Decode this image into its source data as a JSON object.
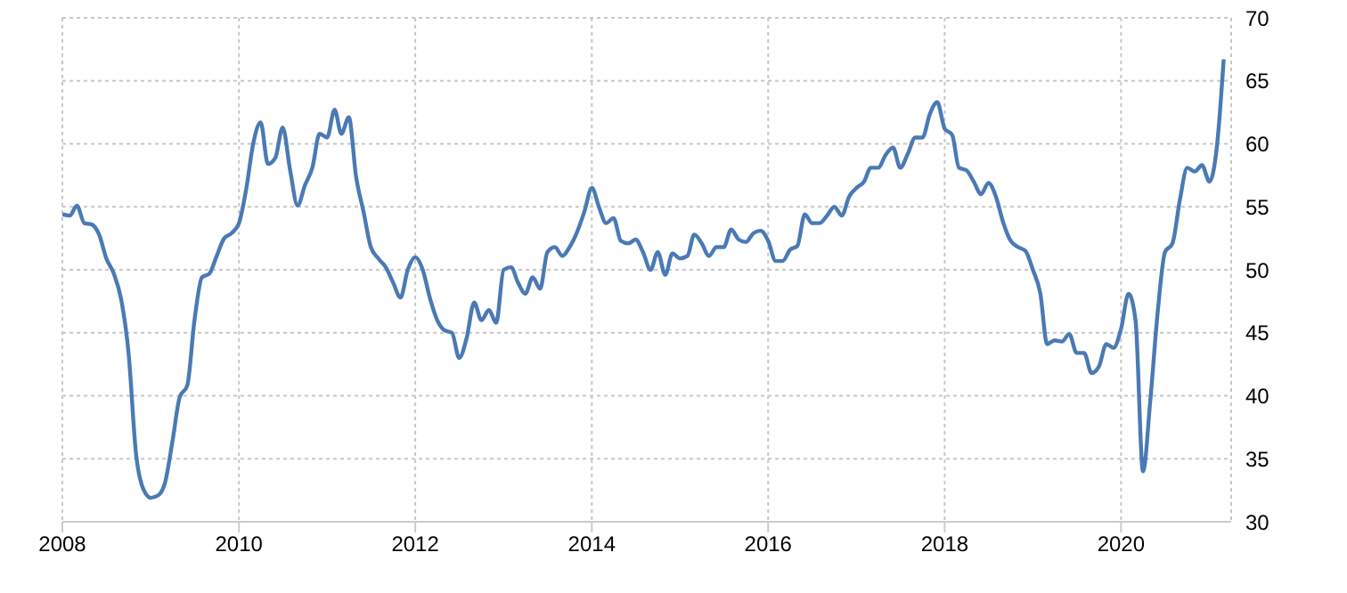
{
  "chart_data": {
    "type": "line",
    "x": [
      "2008-01",
      "2008-02",
      "2008-03",
      "2008-04",
      "2008-05",
      "2008-06",
      "2008-07",
      "2008-08",
      "2008-09",
      "2008-10",
      "2008-11",
      "2008-12",
      "2009-01",
      "2009-02",
      "2009-03",
      "2009-04",
      "2009-05",
      "2009-06",
      "2009-07",
      "2009-08",
      "2009-09",
      "2009-10",
      "2009-11",
      "2009-12",
      "2010-01",
      "2010-02",
      "2010-03",
      "2010-04",
      "2010-05",
      "2010-06",
      "2010-07",
      "2010-08",
      "2010-09",
      "2010-10",
      "2010-11",
      "2010-12",
      "2011-01",
      "2011-02",
      "2011-03",
      "2011-04",
      "2011-05",
      "2011-06",
      "2011-07",
      "2011-08",
      "2011-09",
      "2011-10",
      "2011-11",
      "2011-12",
      "2012-01",
      "2012-02",
      "2012-03",
      "2012-04",
      "2012-05",
      "2012-06",
      "2012-07",
      "2012-08",
      "2012-09",
      "2012-10",
      "2012-11",
      "2012-12",
      "2013-01",
      "2013-02",
      "2013-03",
      "2013-04",
      "2013-05",
      "2013-06",
      "2013-07",
      "2013-08",
      "2013-09",
      "2013-10",
      "2013-11",
      "2013-12",
      "2014-01",
      "2014-02",
      "2014-03",
      "2014-04",
      "2014-05",
      "2014-06",
      "2014-07",
      "2014-08",
      "2014-09",
      "2014-10",
      "2014-11",
      "2014-12",
      "2015-01",
      "2015-02",
      "2015-03",
      "2015-04",
      "2015-05",
      "2015-06",
      "2015-07",
      "2015-08",
      "2015-09",
      "2015-10",
      "2015-11",
      "2015-12",
      "2016-01",
      "2016-02",
      "2016-03",
      "2016-04",
      "2016-05",
      "2016-06",
      "2016-07",
      "2016-08",
      "2016-09",
      "2016-10",
      "2016-11",
      "2016-12",
      "2017-01",
      "2017-02",
      "2017-03",
      "2017-04",
      "2017-05",
      "2017-06",
      "2017-07",
      "2017-08",
      "2017-09",
      "2017-10",
      "2017-11",
      "2017-12",
      "2018-01",
      "2018-02",
      "2018-03",
      "2018-04",
      "2018-05",
      "2018-06",
      "2018-07",
      "2018-08",
      "2018-09",
      "2018-10",
      "2018-11",
      "2018-12",
      "2019-01",
      "2019-02",
      "2019-03",
      "2019-04",
      "2019-05",
      "2019-06",
      "2019-07",
      "2019-08",
      "2019-09",
      "2019-10",
      "2019-11",
      "2019-12",
      "2020-01",
      "2020-02",
      "2020-03",
      "2020-04",
      "2020-05",
      "2020-06",
      "2020-07",
      "2020-08",
      "2020-09",
      "2020-10",
      "2020-11",
      "2020-12",
      "2021-01",
      "2021-02",
      "2021-03"
    ],
    "series": [
      {
        "color": "#4a7ab5",
        "values": [
          54.4,
          54.3,
          55.1,
          53.7,
          53.6,
          52.8,
          50.9,
          49.7,
          47.6,
          43.4,
          35.4,
          32.6,
          31.9,
          32.1,
          33.1,
          36.4,
          39.9,
          40.8,
          46.0,
          49.4,
          49.7,
          51.1,
          52.5,
          52.9,
          53.7,
          56.5,
          60.0,
          61.7,
          58.4,
          58.9,
          61.3,
          57.9,
          55.1,
          56.7,
          58.1,
          60.8,
          60.5,
          62.7,
          60.8,
          62.1,
          57.4,
          54.6,
          51.8,
          50.9,
          50.2,
          49.0,
          47.8,
          50.0,
          51.0,
          50.0,
          47.8,
          46.0,
          45.2,
          45.0,
          43.0,
          44.6,
          47.4,
          46.0,
          46.8,
          45.8,
          50.0,
          50.2,
          49.0,
          48.1,
          49.4,
          48.5,
          51.4,
          51.8,
          51.1,
          51.8,
          53.0,
          54.6,
          56.5,
          54.9,
          53.7,
          54.1,
          52.3,
          52.1,
          52.4,
          51.4,
          50.0,
          51.4,
          49.6,
          51.3,
          50.9,
          51.1,
          52.8,
          52.1,
          51.1,
          51.8,
          51.8,
          53.2,
          52.4,
          52.2,
          52.9,
          53.1,
          52.3,
          50.7,
          50.7,
          51.6,
          51.9,
          54.4,
          53.7,
          53.7,
          54.3,
          55.0,
          54.3,
          55.8,
          56.5,
          57.0,
          58.1,
          58.1,
          59.1,
          59.7,
          58.1,
          59.2,
          60.5,
          60.5,
          62.4,
          63.3,
          61.2,
          60.7,
          58.1,
          57.9,
          57.0,
          56.0,
          56.9,
          55.8,
          53.7,
          52.3,
          51.8,
          51.5,
          50.0,
          48.1,
          44.1,
          44.4,
          44.3,
          44.9,
          43.4,
          43.4,
          41.8,
          42.3,
          44.1,
          43.8,
          45.3,
          48.1,
          46.0,
          34.0,
          39.6,
          46.7,
          51.4,
          52.1,
          55.6,
          58.1,
          57.8,
          58.3,
          57.0,
          59.8,
          66.7
        ]
      }
    ],
    "xlim": [
      "2008-01",
      "2021-04"
    ],
    "xticks": [
      "2008",
      "2010",
      "2012",
      "2014",
      "2016",
      "2018",
      "2020"
    ],
    "ylim": [
      30,
      70
    ],
    "yticks": [
      30,
      35,
      40,
      45,
      50,
      55,
      60,
      65,
      70
    ],
    "grid": true
  }
}
